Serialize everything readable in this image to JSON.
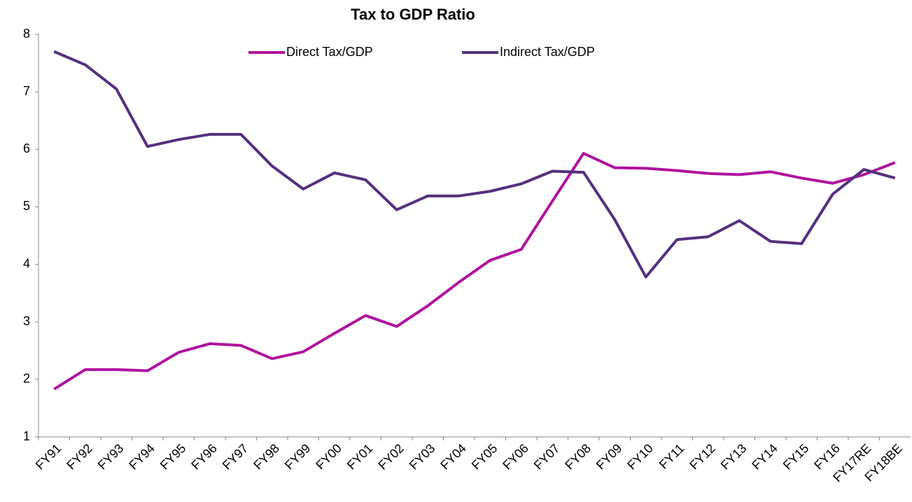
{
  "chart_data": {
    "type": "line",
    "title": "Tax to GDP Ratio",
    "categories": [
      "FY91",
      "FY92",
      "FY93",
      "FY94",
      "FY95",
      "FY96",
      "FY97",
      "FY98",
      "FY99",
      "FY00",
      "FY01",
      "FY02",
      "FY03",
      "FY04",
      "FY05",
      "FY06",
      "FY07",
      "FY08",
      "FY09",
      "FY10",
      "FY11",
      "FY12",
      "FY13",
      "FY14",
      "FY15",
      "FY16",
      "FY17RE",
      "FY18BE"
    ],
    "series": [
      {
        "name": "Direct Tax/GDP",
        "color": "#b0139e",
        "values": [
          1.83,
          2.17,
          2.17,
          2.15,
          2.47,
          2.62,
          2.59,
          2.36,
          2.48,
          2.8,
          3.11,
          2.92,
          3.28,
          3.69,
          4.07,
          4.26,
          5.1,
          5.93,
          5.68,
          5.67,
          5.63,
          5.58,
          5.56,
          5.61,
          5.5,
          5.41,
          5.56,
          5.77
        ]
      },
      {
        "name": "Indirect Tax/GDP",
        "color": "#54307e",
        "values": [
          7.7,
          7.47,
          7.05,
          6.05,
          6.17,
          6.26,
          6.26,
          5.71,
          5.31,
          5.59,
          5.47,
          4.95,
          5.19,
          5.19,
          5.27,
          5.4,
          5.62,
          5.6,
          4.78,
          3.78,
          4.43,
          4.48,
          4.76,
          4.4,
          4.36,
          5.22,
          5.65,
          5.5
        ]
      }
    ],
    "ylim": [
      1,
      8
    ],
    "yticks": [
      1,
      2,
      3,
      4,
      5,
      6,
      7,
      8
    ],
    "grid": false,
    "legend": "top"
  }
}
